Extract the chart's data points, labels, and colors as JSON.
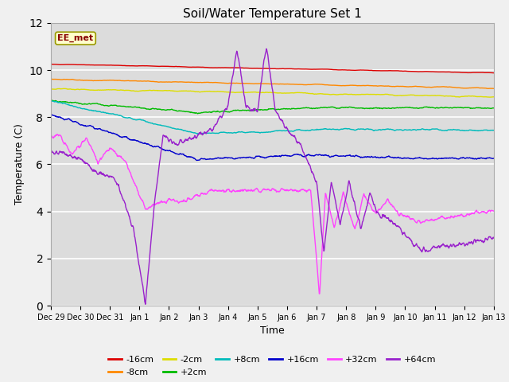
{
  "title": "Soil/Water Temperature Set 1",
  "xlabel": "Time",
  "ylabel": "Temperature (C)",
  "ylim": [
    0,
    12
  ],
  "yticks": [
    0,
    2,
    4,
    6,
    8,
    10,
    12
  ],
  "annotation_text": "EE_met",
  "annotation_bg": "#ffffcc",
  "annotation_border": "#999900",
  "annotation_text_color": "#880000",
  "legend_entries": [
    "-16cm",
    "-8cm",
    "-2cm",
    "+2cm",
    "+8cm",
    "+16cm",
    "+32cm",
    "+64cm"
  ],
  "line_colors": [
    "#dd0000",
    "#ff8800",
    "#dddd00",
    "#00bb00",
    "#00bbbb",
    "#0000cc",
    "#ff44ff",
    "#9922cc"
  ],
  "tick_labels": [
    "Dec 29",
    "Dec 30",
    "Dec 31",
    "Jan 1",
    "Jan 2",
    "Jan 3",
    "Jan 4",
    "Jan 5",
    "Jan 6",
    "Jan 7",
    "Jan 8",
    "Jan 9",
    "Jan 10",
    "Jan 11",
    "Jan 12",
    "Jan 13"
  ]
}
